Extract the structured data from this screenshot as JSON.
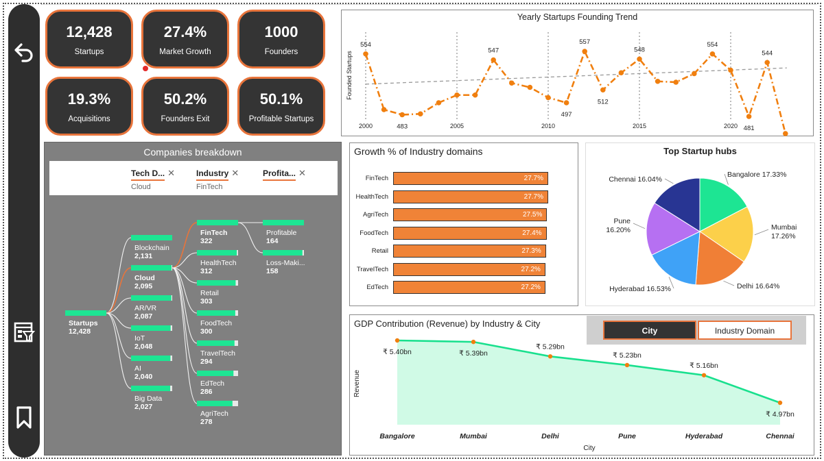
{
  "kpis": [
    {
      "value": "12,428",
      "label": "Startups"
    },
    {
      "value": "27.4%",
      "label": "Market Growth"
    },
    {
      "value": "1000",
      "label": "Founders"
    },
    {
      "value": "19.3%",
      "label": "Acquisitions"
    },
    {
      "value": "50.2%",
      "label": "Founders Exit"
    },
    {
      "value": "50.1%",
      "label": "Profitable Startups"
    }
  ],
  "sidebar": {
    "icons": [
      "back-arrow-icon",
      "filter-report-icon",
      "bookmark-icon"
    ]
  },
  "trend": {
    "title": "Yearly Startups Founding Trend",
    "ylabel": "Founded Startups",
    "x_ticks": [
      "2000",
      "2005",
      "2010",
      "2015",
      "2020"
    ]
  },
  "companies": {
    "title": "Companies breakdown",
    "filters": [
      {
        "name": "Tech D...",
        "value": "Cloud"
      },
      {
        "name": "Industry",
        "value": "FinTech"
      },
      {
        "name": "Profita...",
        "value": ""
      }
    ],
    "root": {
      "label": "Startups",
      "value": "12,428"
    },
    "level1": [
      {
        "label": "Blockchain",
        "value": "2,131"
      },
      {
        "label": "Cloud",
        "value": "2,095"
      },
      {
        "label": "AR/VR",
        "value": "2,087"
      },
      {
        "label": "IoT",
        "value": "2,048"
      },
      {
        "label": "AI",
        "value": "2,040"
      },
      {
        "label": "Big Data",
        "value": "2,027"
      }
    ],
    "level2": [
      {
        "label": "FinTech",
        "value": "322"
      },
      {
        "label": "HealthTech",
        "value": "312"
      },
      {
        "label": "Retail",
        "value": "303"
      },
      {
        "label": "FoodTech",
        "value": "300"
      },
      {
        "label": "TravelTech",
        "value": "294"
      },
      {
        "label": "EdTech",
        "value": "286"
      },
      {
        "label": "AgriTech",
        "value": "278"
      }
    ],
    "level3": [
      {
        "label": "Profitable",
        "value": "164"
      },
      {
        "label": "Loss-Maki...",
        "value": "158"
      }
    ]
  },
  "growth": {
    "title": "Growth % of Industry domains",
    "rows": [
      {
        "label": "FinTech",
        "value": 27.7,
        "text": "27.7%"
      },
      {
        "label": "HealthTech",
        "value": 27.7,
        "text": "27.7%"
      },
      {
        "label": "AgriTech",
        "value": 27.5,
        "text": "27.5%"
      },
      {
        "label": "FoodTech",
        "value": 27.4,
        "text": "27.4%"
      },
      {
        "label": "Retail",
        "value": 27.3,
        "text": "27.3%"
      },
      {
        "label": "TravelTech",
        "value": 27.2,
        "text": "27.2%"
      },
      {
        "label": "EdTech",
        "value": 27.2,
        "text": "27.2%"
      }
    ]
  },
  "hubs": {
    "title": "Top Startup hubs"
  },
  "gdp": {
    "title": "GDP Contribution (Revenue) by Industry & City",
    "xlabel": "City",
    "ylabel": "Revenue"
  },
  "slicer": {
    "options": [
      "City",
      "Industry Domain"
    ],
    "selected": "City"
  },
  "chart_data": [
    {
      "type": "line",
      "title": "Yearly Startups Founding Trend",
      "xlabel": "",
      "ylabel": "Founded Startups",
      "x": [
        2000,
        2001,
        2002,
        2003,
        2004,
        2005,
        2006,
        2007,
        2008,
        2009,
        2010,
        2011,
        2012,
        2013,
        2014,
        2015,
        2016,
        2017,
        2018,
        2019,
        2020,
        2021,
        2022,
        2023
      ],
      "y": [
        554,
        489,
        483,
        484,
        497,
        506,
        506,
        547,
        520,
        515,
        503,
        497,
        557,
        512,
        532,
        548,
        522,
        521,
        531,
        554,
        535,
        481,
        544,
        461
      ],
      "data_labels": {
        "2000": 554,
        "2002": 483,
        "2007": 547,
        "2011": 497,
        "2012": 557,
        "2013": 512,
        "2015": 548,
        "2019": 554,
        "2021": 481,
        "2022": 544,
        "2023": 461
      },
      "trendline": true,
      "color": "#f07f0f"
    },
    {
      "type": "pie",
      "title": "Top Startup hubs",
      "slices": [
        {
          "label": "Bangalore",
          "value": 17.33,
          "text": "Bangalore 17.33%",
          "color": "#1de593"
        },
        {
          "label": "Mumbai",
          "value": 17.26,
          "text": "Mumbai 17.26%",
          "color": "#fcd04a"
        },
        {
          "label": "Delhi",
          "value": 16.64,
          "text": "Delhi 16.64%",
          "color": "#f07f36"
        },
        {
          "label": "Hyderabad",
          "value": 16.53,
          "text": "Hyderabad 16.53%",
          "color": "#3fa2f7"
        },
        {
          "label": "Pune",
          "value": 16.2,
          "text": "Pune 16.20%",
          "color": "#b670f2"
        },
        {
          "label": "Chennai",
          "value": 16.04,
          "text": "Chennai 16.04%",
          "color": "#283593"
        }
      ]
    },
    {
      "type": "area",
      "title": "GDP Contribution (Revenue) by Industry & City",
      "xlabel": "City",
      "ylabel": "Revenue",
      "categories": [
        "Bangalore",
        "Mumbai",
        "Delhi",
        "Pune",
        "Hyderabad",
        "Chennai"
      ],
      "values": [
        5.4,
        5.39,
        5.29,
        5.23,
        5.16,
        4.97
      ],
      "labels": [
        "₹ 5.40bn",
        "₹ 5.39bn",
        "₹ 5.29bn",
        "₹ 5.23bn",
        "₹ 5.16bn",
        "₹ 4.97bn"
      ],
      "ylim": [
        4.97,
        5.4
      ],
      "line_color": "#19e08e",
      "fill_color": "#d0fae6",
      "marker_color": "#f07f0f"
    }
  ]
}
